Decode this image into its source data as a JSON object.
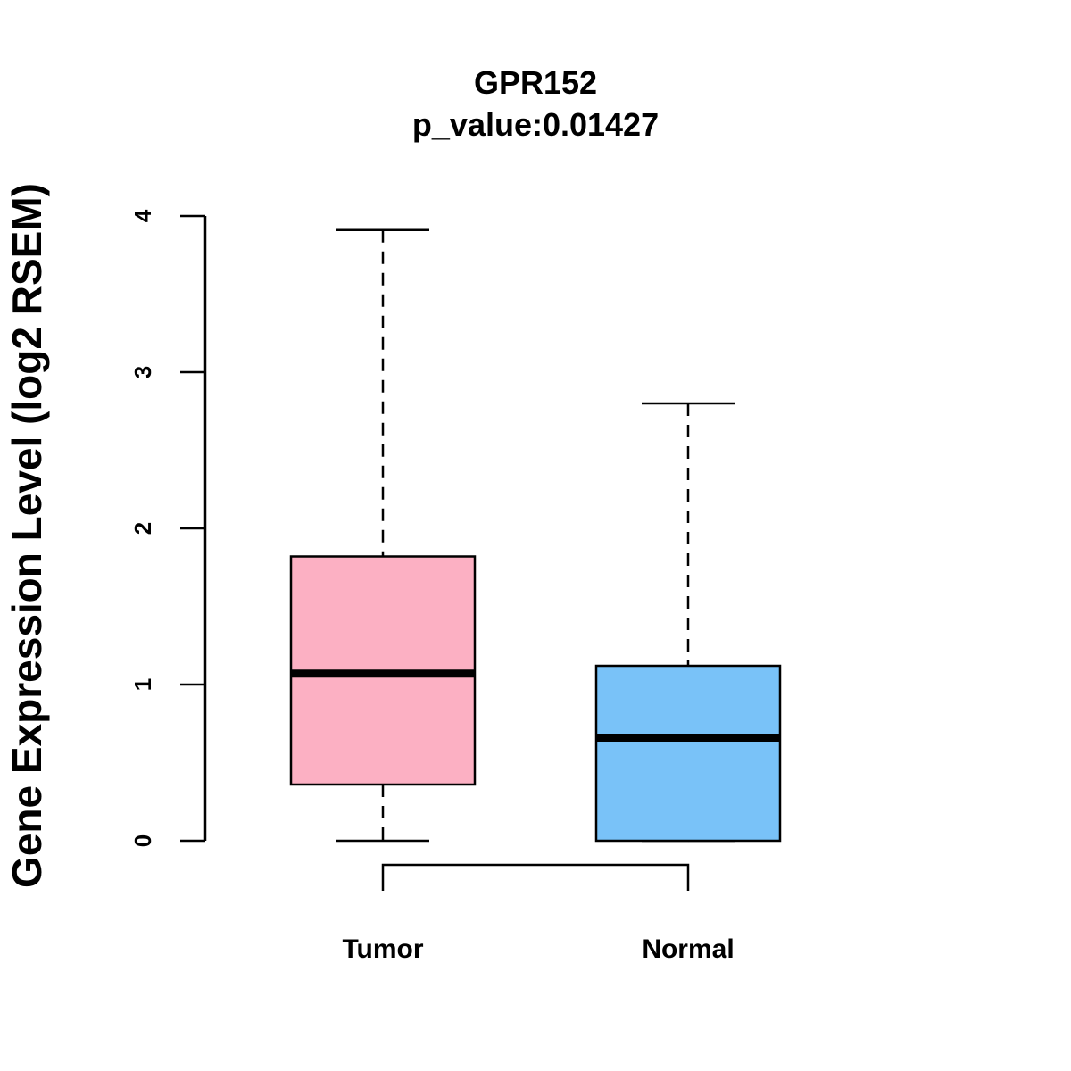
{
  "chart_data": {
    "type": "boxplot",
    "title": "GPR152",
    "subtitle": "p_value:0.01427",
    "xlabel": "",
    "ylabel": "Gene Expression Level (log2 RSEM)",
    "ylim": [
      0,
      4
    ],
    "yticks": [
      0,
      1,
      2,
      3,
      4
    ],
    "ytick_labels": [
      "0",
      "1",
      "2",
      "3",
      "4"
    ],
    "grid": false,
    "categories": [
      "Tumor",
      "Normal"
    ],
    "series": [
      {
        "name": "Tumor",
        "whisker_low": 0.0,
        "q1": 0.36,
        "median": 1.07,
        "q3": 1.82,
        "whisker_high": 3.91,
        "color": "#FCB0C3"
      },
      {
        "name": "Normal",
        "whisker_low": 0.0,
        "q1": 0.0,
        "median": 0.66,
        "q3": 1.12,
        "whisker_high": 2.8,
        "color": "#79C2F8"
      }
    ],
    "comparison_bracket": [
      "Tumor",
      "Normal"
    ]
  }
}
